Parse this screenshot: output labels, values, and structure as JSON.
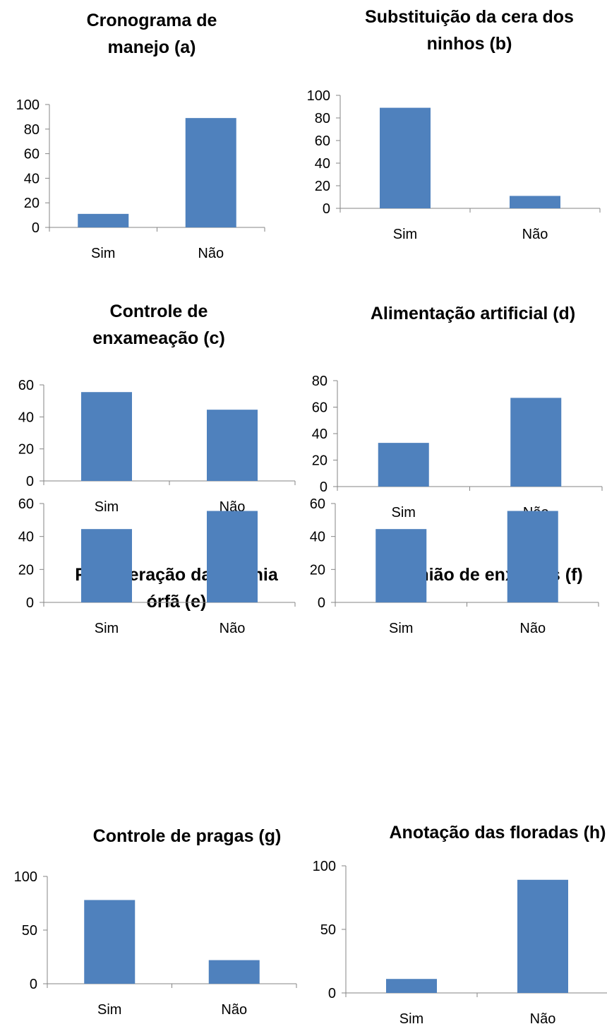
{
  "colors": {
    "bar": "#4f81bd",
    "axis": "#868686",
    "text": "#000000"
  },
  "chart_data": [
    {
      "type": "bar",
      "title": "Cronograma de manejo (a)",
      "categories": [
        "Sim",
        "Não"
      ],
      "values": [
        11,
        89
      ],
      "ylim": [
        0,
        100
      ],
      "yticks": [
        0,
        20,
        40,
        60,
        80,
        100
      ],
      "ytick_labels": [
        "0",
        "20",
        "40",
        "60",
        "80",
        "100"
      ],
      "grid": false,
      "legend": "none"
    },
    {
      "type": "bar",
      "title": "Substituição da cera dos ninhos (b)",
      "categories": [
        "Sim",
        "Não"
      ],
      "values": [
        89,
        11
      ],
      "ylim": [
        0,
        100
      ],
      "yticks": [
        0,
        20,
        40,
        60,
        80,
        100
      ],
      "ytick_labels": [
        "0",
        "20",
        "40",
        "60",
        "80",
        "100"
      ],
      "grid": false,
      "legend": "none"
    },
    {
      "type": "bar",
      "title": "Controle de enxameação (c)",
      "categories": [
        "Sim",
        "Não"
      ],
      "values": [
        55.5,
        44.5
      ],
      "ylim": [
        0,
        60
      ],
      "yticks": [
        0,
        20,
        40,
        60
      ],
      "ytick_labels": [
        "0",
        "20",
        "40",
        "60"
      ],
      "grid": false,
      "legend": "none"
    },
    {
      "type": "bar",
      "title": "Alimentação artificial (d)",
      "categories": [
        "Sim",
        "Não"
      ],
      "values": [
        33,
        67
      ],
      "ylim": [
        0,
        80
      ],
      "yticks": [
        0,
        20,
        40,
        60,
        80
      ],
      "ytick_labels": [
        "0",
        "20",
        "40",
        "60",
        "80"
      ],
      "grid": false,
      "legend": "none"
    },
    {
      "type": "bar",
      "title": "Recuperação da colônia órfã (e)",
      "categories": [
        "Sim",
        "Não"
      ],
      "values": [
        44.5,
        55.5
      ],
      "ylim": [
        0,
        60
      ],
      "yticks": [
        0,
        20,
        40,
        60
      ],
      "ytick_labels": [
        "0",
        "20",
        "40",
        "60"
      ],
      "grid": false,
      "legend": "none"
    },
    {
      "type": "bar",
      "title": "União de enxames (f)",
      "categories": [
        "Sim",
        "Não"
      ],
      "values": [
        44.5,
        55.5
      ],
      "ylim": [
        0,
        60
      ],
      "yticks": [
        0,
        20,
        40,
        60
      ],
      "ytick_labels": [
        "0",
        "20",
        "40",
        "60"
      ],
      "grid": false,
      "legend": "none"
    },
    {
      "type": "bar",
      "title": "Controle de pragas (g)",
      "categories": [
        "Sim",
        "Não"
      ],
      "values": [
        78,
        22
      ],
      "ylim": [
        0,
        100
      ],
      "yticks": [
        0,
        50,
        100
      ],
      "ytick_labels": [
        "0",
        "50",
        "100"
      ],
      "grid": false,
      "legend": "none"
    },
    {
      "type": "bar",
      "title": "Anotação das floradas (h)",
      "categories": [
        "Sim",
        "Não"
      ],
      "values": [
        11,
        89
      ],
      "ylim": [
        0,
        100
      ],
      "yticks": [
        0,
        50,
        100
      ],
      "ytick_labels": [
        "0",
        "50",
        "100"
      ],
      "grid": false,
      "legend": "none"
    }
  ]
}
